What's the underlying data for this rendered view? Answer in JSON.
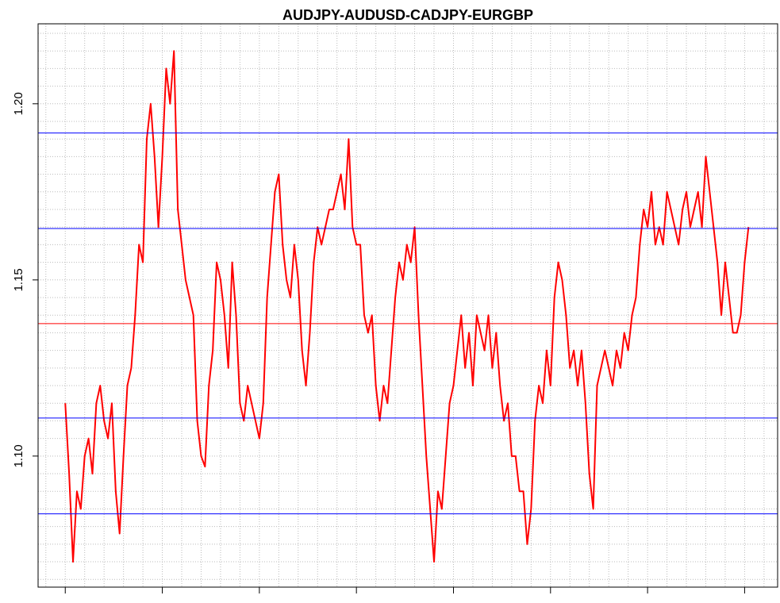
{
  "chart_data": {
    "type": "line",
    "title": "AUDJPY-AUDUSD-CADJPY-EURGBP",
    "color": "#ff0000",
    "x": [
      0,
      4,
      8,
      12,
      16,
      20,
      24,
      28,
      32,
      36,
      40,
      44,
      48,
      52,
      56,
      60,
      64,
      68,
      72,
      76,
      80,
      84,
      88,
      92,
      96,
      100,
      104,
      108,
      112,
      116,
      120,
      124,
      128,
      132,
      136,
      140,
      144,
      148,
      152,
      156,
      160,
      164,
      168,
      172,
      176,
      180,
      184,
      188,
      192,
      196,
      200,
      204,
      208,
      212,
      216,
      220,
      224,
      228,
      232,
      236,
      240,
      244,
      248,
      252,
      256,
      260,
      264,
      268,
      272,
      276,
      280,
      284,
      288,
      292,
      296,
      300,
      304,
      308,
      312,
      316,
      320,
      324,
      328,
      332,
      336,
      340,
      344,
      348,
      352,
      356,
      360,
      364,
      368,
      372,
      376,
      380,
      384,
      388,
      392,
      396,
      400,
      404,
      408,
      412,
      416,
      420,
      424,
      428,
      432,
      436,
      440,
      444,
      448,
      452,
      456,
      460,
      464,
      468,
      472,
      476,
      480,
      484,
      488,
      492,
      496,
      500,
      504,
      508,
      512,
      516,
      520,
      524,
      528,
      532,
      536,
      540,
      544,
      548,
      552,
      556,
      560,
      564,
      568,
      572,
      576,
      580,
      584,
      588,
      592,
      596,
      600,
      604,
      608,
      612,
      616,
      620,
      624,
      628,
      632,
      636,
      640,
      644,
      648,
      652,
      656,
      660,
      664,
      668,
      672,
      676,
      680,
      684,
      688,
      692,
      696,
      700,
      704
    ],
    "values": [
      1.115,
      1.095,
      1.07,
      1.09,
      1.085,
      1.1,
      1.105,
      1.095,
      1.115,
      1.12,
      1.11,
      1.105,
      1.115,
      1.09,
      1.078,
      1.1,
      1.12,
      1.125,
      1.14,
      1.16,
      1.155,
      1.19,
      1.2,
      1.185,
      1.165,
      1.185,
      1.21,
      1.2,
      1.215,
      1.17,
      1.16,
      1.15,
      1.145,
      1.14,
      1.11,
      1.1,
      1.097,
      1.12,
      1.13,
      1.155,
      1.15,
      1.14,
      1.125,
      1.155,
      1.14,
      1.115,
      1.11,
      1.12,
      1.115,
      1.11,
      1.105,
      1.115,
      1.145,
      1.16,
      1.175,
      1.18,
      1.16,
      1.15,
      1.145,
      1.16,
      1.15,
      1.13,
      1.12,
      1.135,
      1.155,
      1.165,
      1.16,
      1.165,
      1.17,
      1.17,
      1.175,
      1.18,
      1.17,
      1.19,
      1.165,
      1.16,
      1.16,
      1.14,
      1.135,
      1.14,
      1.12,
      1.11,
      1.12,
      1.115,
      1.13,
      1.145,
      1.155,
      1.15,
      1.16,
      1.155,
      1.165,
      1.14,
      1.12,
      1.1,
      1.085,
      1.07,
      1.09,
      1.085,
      1.1,
      1.115,
      1.12,
      1.13,
      1.14,
      1.125,
      1.135,
      1.12,
      1.14,
      1.135,
      1.13,
      1.14,
      1.125,
      1.135,
      1.12,
      1.11,
      1.115,
      1.1,
      1.1,
      1.09,
      1.09,
      1.075,
      1.085,
      1.11,
      1.12,
      1.115,
      1.13,
      1.12,
      1.145,
      1.155,
      1.15,
      1.14,
      1.125,
      1.13,
      1.12,
      1.13,
      1.115,
      1.095,
      1.085,
      1.12,
      1.125,
      1.13,
      1.125,
      1.12,
      1.13,
      1.125,
      1.135,
      1.13,
      1.14,
      1.145,
      1.16,
      1.17,
      1.165,
      1.175,
      1.16,
      1.165,
      1.16,
      1.175,
      1.17,
      1.165,
      1.16,
      1.17,
      1.175,
      1.165,
      1.17,
      1.175,
      1.165,
      1.185,
      1.175,
      1.165,
      1.155,
      1.14,
      1.155,
      1.145,
      1.135,
      1.135,
      1.14,
      1.155,
      1.165
    ],
    "hlines": [
      {
        "value": 1.1917,
        "color": "#0000ff"
      },
      {
        "value": 1.1646,
        "color": "#0000ff"
      },
      {
        "value": 1.1376,
        "color": "#ff0000"
      },
      {
        "value": 1.1108,
        "color": "#0000ff"
      },
      {
        "value": 1.0836,
        "color": "#0000ff"
      }
    ],
    "xlim": [
      -28,
      734
    ],
    "ylim": [
      1.0628,
      1.2227
    ],
    "xticks": [
      0,
      100,
      200,
      300,
      400,
      500,
      600,
      700
    ],
    "yticks": [
      {
        "value": 1.1,
        "label": "1.10"
      },
      {
        "value": 1.15,
        "label": "1.15"
      },
      {
        "value": 1.2,
        "label": "1.20"
      }
    ],
    "x_grid": [
      -20,
      0,
      20,
      40,
      60,
      80,
      100,
      120,
      140,
      160,
      180,
      200,
      220,
      240,
      260,
      280,
      300,
      320,
      340,
      360,
      380,
      400,
      420,
      440,
      460,
      480,
      500,
      520,
      540,
      560,
      580,
      600,
      620,
      640,
      660,
      680,
      700,
      720
    ],
    "y_grid": [
      1.065,
      1.07,
      1.075,
      1.08,
      1.085,
      1.09,
      1.095,
      1.1,
      1.105,
      1.11,
      1.115,
      1.12,
      1.125,
      1.13,
      1.135,
      1.14,
      1.145,
      1.15,
      1.155,
      1.16,
      1.165,
      1.17,
      1.175,
      1.18,
      1.185,
      1.19,
      1.195,
      1.2,
      1.205,
      1.21,
      1.215,
      1.22
    ],
    "grid": true
  }
}
